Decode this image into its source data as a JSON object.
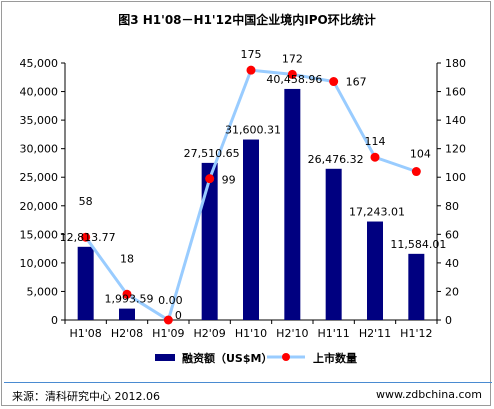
{
  "chart_data": {
    "type": "bar+line",
    "title": "图3 H1'08－H1'12中国企业境内IPO环比统计",
    "categories": [
      "H1'08",
      "H2'08",
      "H1'09",
      "H2'09",
      "H1'10",
      "H2'10",
      "H1'11",
      "H2'11",
      "H1'12"
    ],
    "series": [
      {
        "name": "融资额（US$M）",
        "type": "bar",
        "axis": "left",
        "color": "#000080",
        "values": [
          12813.77,
          1993.59,
          0.0,
          27510.65,
          31600.31,
          40458.96,
          26476.32,
          17243.01,
          11584.01
        ],
        "labels": [
          "12,813.77",
          "1,993.59",
          "0.00",
          "27,510.65",
          "31,600.31",
          "40,458.96",
          "26,476.32",
          "17,243.01",
          "11,584.01"
        ]
      },
      {
        "name": "上市数量",
        "type": "line",
        "axis": "right",
        "color": "#99ccff",
        "marker_color": "#ff0000",
        "values": [
          58,
          18,
          0,
          99,
          175,
          172,
          167,
          114,
          104
        ],
        "labels": [
          "58",
          "18",
          "0",
          "99",
          "175",
          "172",
          "167",
          "114",
          "104"
        ]
      }
    ],
    "left_axis": {
      "ylim": [
        0,
        45000
      ],
      "ticks": [
        "0",
        "5,000",
        "10,000",
        "15,000",
        "20,000",
        "25,000",
        "30,000",
        "35,000",
        "40,000",
        "45,000"
      ]
    },
    "right_axis": {
      "ylim": [
        0,
        180
      ],
      "ticks": [
        "0",
        "20",
        "40",
        "60",
        "80",
        "100",
        "120",
        "140",
        "160",
        "180"
      ]
    },
    "legend_position": "bottom",
    "grid": false
  },
  "footer": {
    "source": "来源：清科研究中心 2012.06",
    "website": "www.zdbchina.com"
  }
}
